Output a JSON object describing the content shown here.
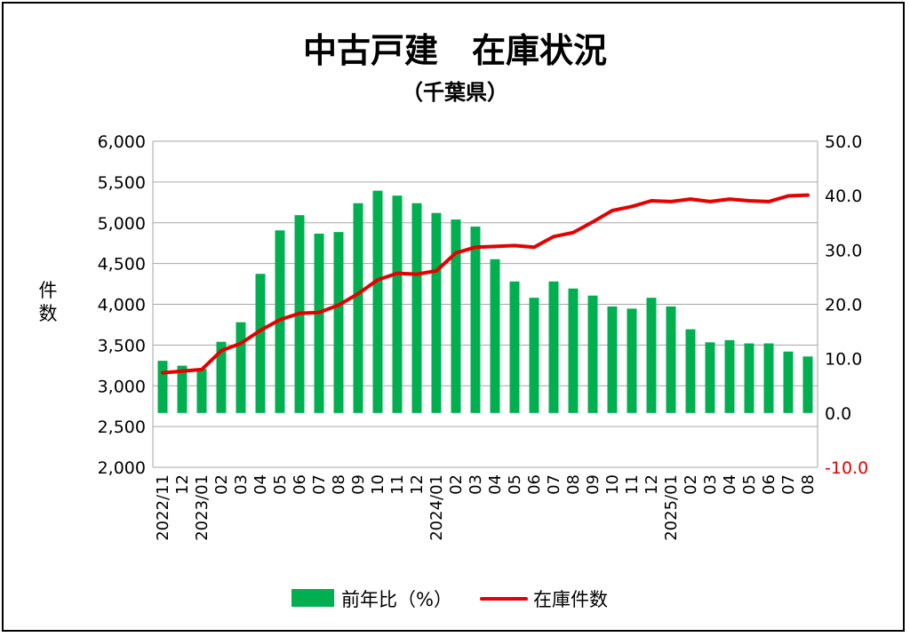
{
  "chart_data": {
    "type": "bar+line",
    "title": "中古戸建　在庫状況",
    "subtitle": "（千葉県）",
    "ylabel": "件数",
    "ylim_left": [
      2000,
      6000
    ],
    "left_ticks": [
      "2,000",
      "2,500",
      "3,000",
      "3,500",
      "4,000",
      "4,500",
      "5,000",
      "5,500",
      "6,000"
    ],
    "ylim_right": [
      -10,
      50
    ],
    "right_ticks": [
      "-10.0",
      "0.0",
      "10.0",
      "20.0",
      "30.0",
      "40.0",
      "50.0"
    ],
    "grid": true,
    "legend_position": "bottom",
    "categories": [
      "2022/11",
      "12",
      "2023/01",
      "02",
      "03",
      "04",
      "05",
      "06",
      "07",
      "08",
      "09",
      "10",
      "11",
      "12",
      "2024/01",
      "02",
      "03",
      "04",
      "05",
      "06",
      "07",
      "08",
      "09",
      "10",
      "11",
      "12",
      "2025/01",
      "02",
      "03",
      "04",
      "05",
      "06",
      "07",
      "08"
    ],
    "series": [
      {
        "name": "前年比（%）",
        "type": "bar",
        "axis": "right",
        "color": "#00b050",
        "values": [
          9.6,
          8.7,
          8.1,
          13.1,
          16.7,
          25.6,
          33.6,
          36.4,
          33.0,
          33.3,
          38.6,
          40.9,
          40.0,
          38.6,
          36.8,
          35.6,
          34.3,
          28.3,
          24.2,
          21.2,
          24.2,
          22.9,
          21.6,
          19.6,
          19.2,
          21.2,
          19.6,
          15.4,
          13.0,
          13.4,
          12.8,
          12.8,
          11.3,
          10.4
        ]
      },
      {
        "name": "在庫件数",
        "type": "line",
        "axis": "left",
        "color": "#e60000",
        "values": [
          3160,
          3180,
          3200,
          3430,
          3520,
          3680,
          3810,
          3890,
          3900,
          3990,
          4130,
          4300,
          4380,
          4370,
          4410,
          4630,
          4700,
          4710,
          4720,
          4700,
          4830,
          4880,
          5010,
          5150,
          5200,
          5270,
          5260,
          5290,
          5260,
          5290,
          5270,
          5260,
          5330,
          5340
        ]
      }
    ]
  }
}
